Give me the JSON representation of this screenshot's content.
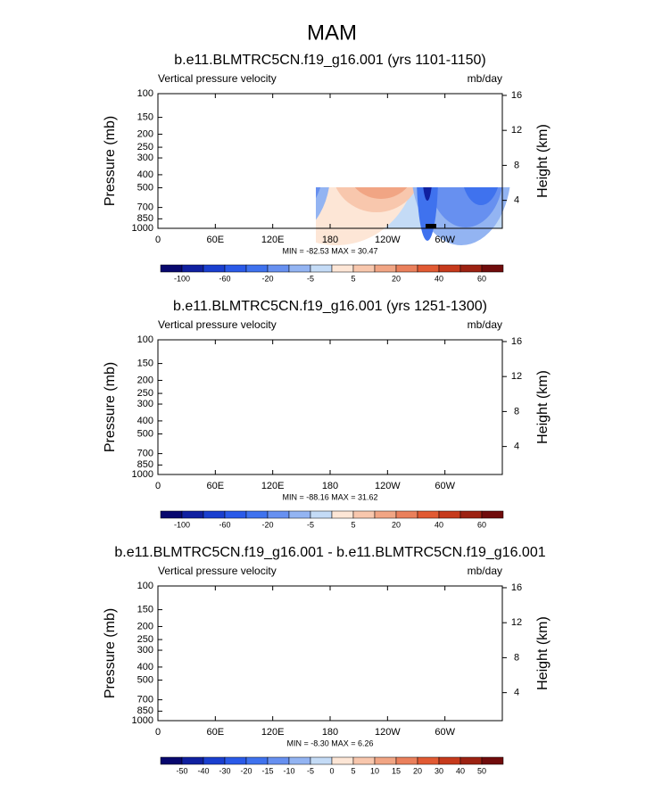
{
  "page_title": "MAM",
  "chart_data": [
    {
      "type": "contour",
      "title": "b.e11.BLMTRC5CN.f19_g16.001 (yrs 1101-1150)",
      "left_string": "Vertical pressure velocity",
      "right_string": "mb/day",
      "ylabel": "Pressure (mb)",
      "y2label": "Height (km)",
      "xlim": [
        0,
        360
      ],
      "xticks": [
        0,
        {
          "value": 60,
          "label": "60E"
        },
        {
          "value": 120,
          "label": "120E"
        },
        180,
        {
          "value": 240,
          "label": "120W"
        },
        {
          "value": 300,
          "label": "60W"
        }
      ],
      "ylim": [
        1000,
        100
      ],
      "ylog": true,
      "yticks": [
        100,
        150,
        200,
        250,
        300,
        400,
        500,
        700,
        850,
        1000
      ],
      "y2lim": [
        0.8,
        16.2
      ],
      "y2ticks": [
        4,
        8,
        12,
        16
      ],
      "stats": "MIN = -82.53  MAX = 30.47",
      "colorbar": {
        "labels": [
          -100,
          -60,
          -20,
          -5,
          5,
          20,
          40,
          60
        ],
        "colors": [
          "#08086e",
          "#1020a0",
          "#1a3fcf",
          "#2a5ae8",
          "#3f72ee",
          "#6790f0",
          "#93b4f2",
          "#c4dbf6",
          "#fde6d6",
          "#f8c7ad",
          "#f1a584",
          "#ea805c",
          "#e15a33",
          "#c63a1c",
          "#9c2212",
          "#700c0c"
        ]
      }
    },
    {
      "type": "contour",
      "title": "b.e11.BLMTRC5CN.f19_g16.001 (yrs 1251-1300)",
      "left_string": "Vertical pressure velocity",
      "right_string": "mb/day",
      "ylabel": "Pressure (mb)",
      "y2label": "Height (km)",
      "xlim": [
        0,
        360
      ],
      "xticks": [
        0,
        {
          "value": 60,
          "label": "60E"
        },
        {
          "value": 120,
          "label": "120E"
        },
        180,
        {
          "value": 240,
          "label": "120W"
        },
        {
          "value": 300,
          "label": "60W"
        }
      ],
      "ylim": [
        1000,
        100
      ],
      "ylog": true,
      "yticks": [
        100,
        150,
        200,
        250,
        300,
        400,
        500,
        700,
        850,
        1000
      ],
      "y2lim": [
        0.8,
        16.2
      ],
      "y2ticks": [
        4,
        8,
        12,
        16
      ],
      "stats": "MIN = -88.16  MAX = 31.62",
      "colorbar": {
        "labels": [
          -100,
          -60,
          -20,
          -5,
          5,
          20,
          40,
          60
        ],
        "colors": [
          "#08086e",
          "#1020a0",
          "#1a3fcf",
          "#2a5ae8",
          "#3f72ee",
          "#6790f0",
          "#93b4f2",
          "#c4dbf6",
          "#fde6d6",
          "#f8c7ad",
          "#f1a584",
          "#ea805c",
          "#e15a33",
          "#c63a1c",
          "#9c2212",
          "#700c0c"
        ]
      }
    },
    {
      "type": "contour",
      "title": "b.e11.BLMTRC5CN.f19_g16.001 - b.e11.BLMTRC5CN.f19_g16.001",
      "left_string": "Vertical pressure velocity",
      "right_string": "mb/day",
      "ylabel": "Pressure (mb)",
      "y2label": "Height (km)",
      "xlim": [
        0,
        360
      ],
      "xticks": [
        0,
        {
          "value": 60,
          "label": "60E"
        },
        {
          "value": 120,
          "label": "120E"
        },
        180,
        {
          "value": 240,
          "label": "120W"
        },
        {
          "value": 300,
          "label": "60W"
        }
      ],
      "ylim": [
        1000,
        100
      ],
      "ylog": true,
      "yticks": [
        100,
        150,
        200,
        250,
        300,
        400,
        500,
        700,
        850,
        1000
      ],
      "y2lim": [
        0.8,
        16.2
      ],
      "y2ticks": [
        4,
        8,
        12,
        16
      ],
      "stats": "MIN = -8.30  MAX =  6.26",
      "colorbar": {
        "labels": [
          -50,
          -40,
          -30,
          -20,
          -15,
          -10,
          -5,
          0,
          5,
          10,
          15,
          20,
          30,
          40,
          50
        ],
        "colors": [
          "#08086e",
          "#1020a0",
          "#1a3fcf",
          "#2a5ae8",
          "#3f72ee",
          "#6790f0",
          "#93b4f2",
          "#c4dbf6",
          "#fde6d6",
          "#f8c7ad",
          "#f1a584",
          "#ea805c",
          "#e15a33",
          "#c63a1c",
          "#9c2212",
          "#700c0c"
        ]
      }
    }
  ]
}
